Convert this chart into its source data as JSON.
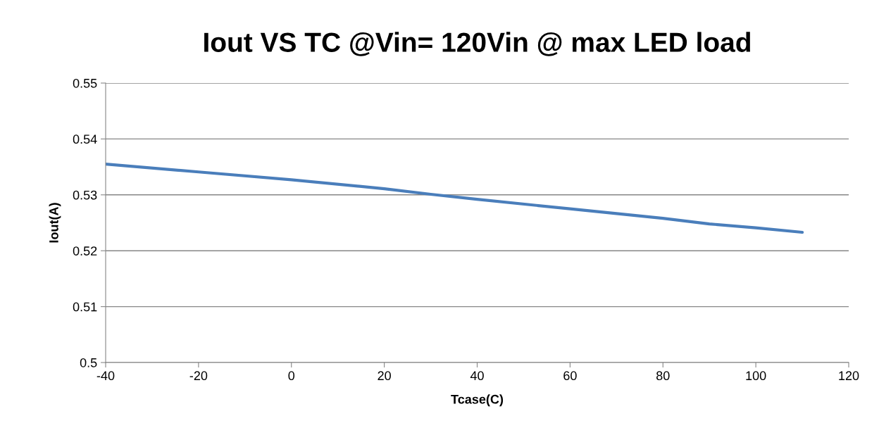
{
  "chart_data": {
    "type": "line",
    "title": "Iout VS TC @Vin= 120Vin @ max LED load",
    "xlabel": "Tcase(C)",
    "ylabel": "Iout(A)",
    "x": [
      -40,
      -20,
      0,
      20,
      30,
      40,
      60,
      80,
      90,
      100,
      110
    ],
    "series": [
      {
        "color": "#4a7ebb",
        "values": [
          0.5355,
          0.5341,
          0.5327,
          0.5311,
          0.5301,
          0.5292,
          0.5275,
          0.5258,
          0.5248,
          0.5241,
          0.5233
        ]
      }
    ],
    "xlim": [
      -40,
      120
    ],
    "xticks": [
      -40,
      -20,
      0,
      20,
      40,
      60,
      80,
      100,
      120
    ],
    "ylim": [
      0.5,
      0.55
    ],
    "yticks": [
      {
        "value": 0.5,
        "label": "0.5"
      },
      {
        "value": 0.51,
        "label": "0.51"
      },
      {
        "value": 0.52,
        "label": "0.52"
      },
      {
        "value": 0.53,
        "label": "0.53"
      },
      {
        "value": 0.54,
        "label": "0.54"
      },
      {
        "value": 0.55,
        "label": "0.55"
      }
    ],
    "grid": "y",
    "marker": "none",
    "line_style": "solid"
  }
}
